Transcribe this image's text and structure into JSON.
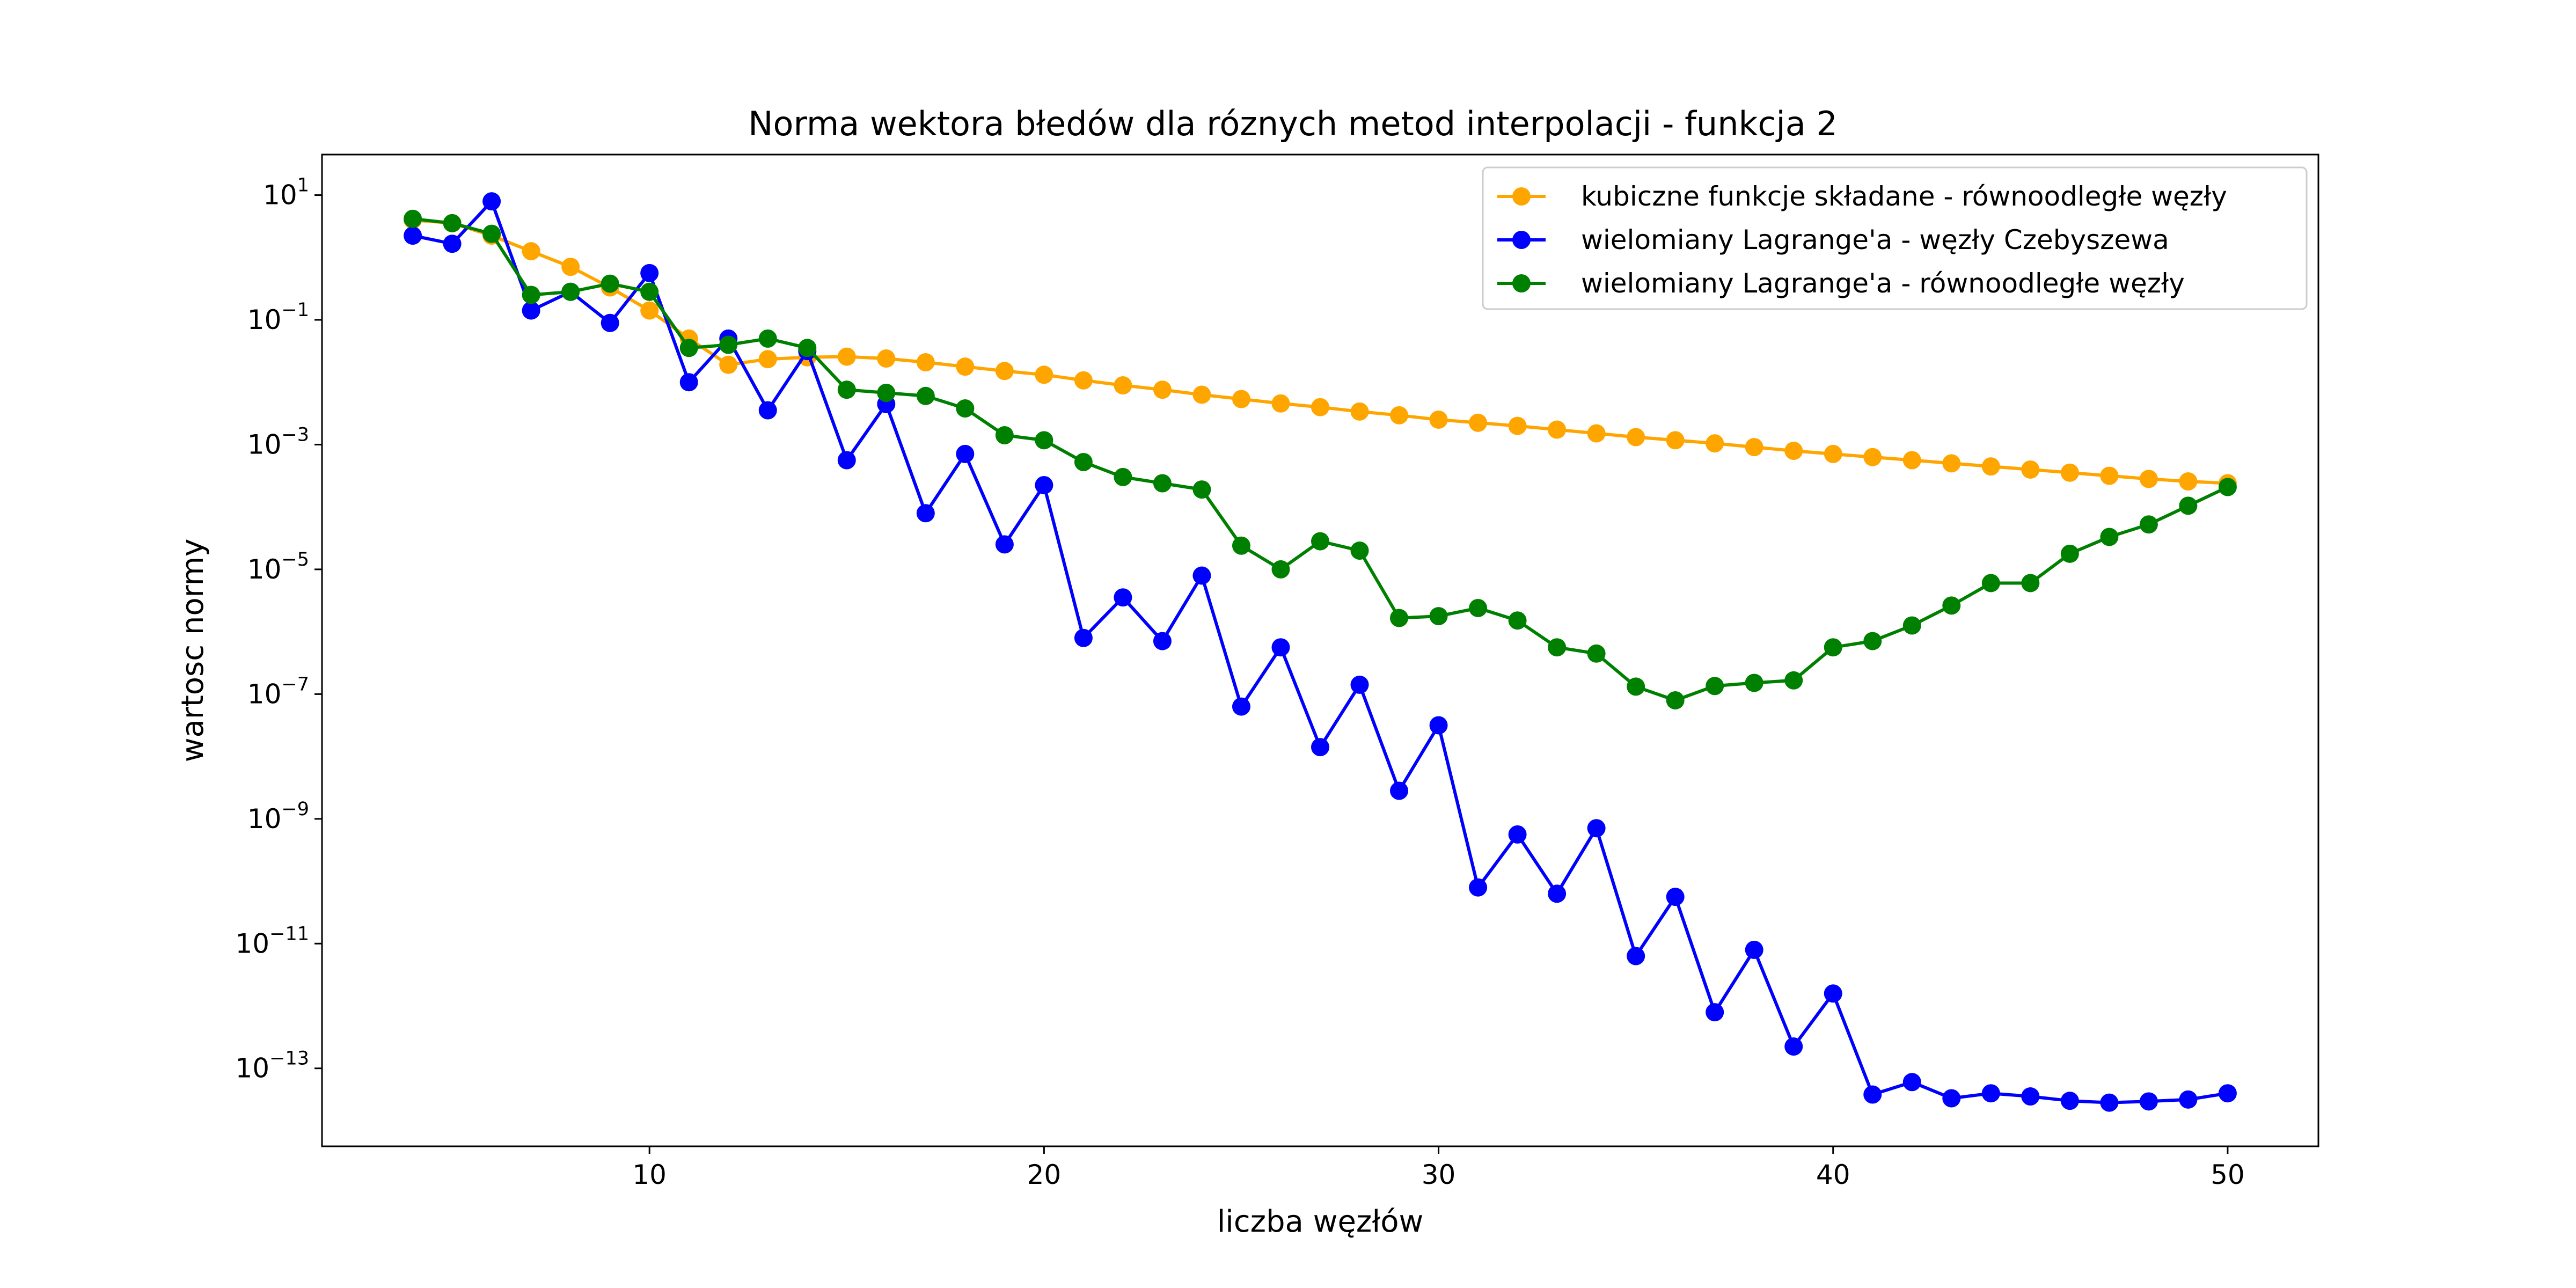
{
  "chart_data": {
    "type": "line",
    "title": "Norma wektora błedów dla róznych metod interpolacji - funkcja 2",
    "xlabel": "liczba węzłów",
    "ylabel": "wartosc normy",
    "xlim": [
      1.7,
      52.3
    ],
    "ylim_log10": [
      -14.25,
      1.65
    ],
    "y_scale": "log",
    "grid": false,
    "legend_position": "top-right",
    "x_ticks": [
      10,
      20,
      30,
      40,
      50
    ],
    "y_ticks": [
      {
        "base": "10",
        "exp": "1"
      },
      {
        "base": "10",
        "exp": "−1"
      },
      {
        "base": "10",
        "exp": "−3"
      },
      {
        "base": "10",
        "exp": "−5"
      },
      {
        "base": "10",
        "exp": "−7"
      },
      {
        "base": "10",
        "exp": "−9"
      },
      {
        "base": "10",
        "exp": "−11"
      },
      {
        "base": "10",
        "exp": "−13"
      }
    ],
    "y_tick_log10": [
      1,
      -1,
      -3,
      -5,
      -7,
      -9,
      -11,
      -13
    ],
    "x": [
      4,
      5,
      6,
      7,
      8,
      9,
      10,
      11,
      12,
      13,
      14,
      15,
      16,
      17,
      18,
      19,
      20,
      21,
      22,
      23,
      24,
      25,
      26,
      27,
      28,
      29,
      30,
      31,
      32,
      33,
      34,
      35,
      36,
      37,
      38,
      39,
      40,
      41,
      42,
      43,
      44,
      45,
      46,
      47,
      48,
      49,
      50
    ],
    "series": [
      {
        "name": "kubiczne funkcje składane - równoodległe węzły",
        "color": "#ffa500",
        "log10_values": [
          0.6,
          0.55,
          0.35,
          0.1,
          -0.15,
          -0.48,
          -0.85,
          -1.3,
          -1.72,
          -1.63,
          -1.6,
          -1.59,
          -1.62,
          -1.68,
          -1.75,
          -1.82,
          -1.88,
          -1.97,
          -2.05,
          -2.12,
          -2.2,
          -2.27,
          -2.34,
          -2.4,
          -2.47,
          -2.53,
          -2.6,
          -2.65,
          -2.7,
          -2.76,
          -2.82,
          -2.88,
          -2.93,
          -2.98,
          -3.04,
          -3.1,
          -3.15,
          -3.2,
          -3.25,
          -3.3,
          -3.35,
          -3.4,
          -3.45,
          -3.5,
          -3.55,
          -3.59,
          -3.62
        ]
      },
      {
        "name": "wielomiany Lagrange'a - węzły Czebyszewa",
        "color": "#0000ff",
        "log10_values": [
          0.35,
          0.22,
          0.9,
          -0.85,
          -0.55,
          -1.05,
          -0.25,
          -2.0,
          -1.3,
          -2.45,
          -1.5,
          -3.25,
          -2.35,
          -4.1,
          -3.15,
          -4.6,
          -3.65,
          -6.1,
          -5.45,
          -6.15,
          -5.1,
          -7.2,
          -6.25,
          -7.85,
          -6.85,
          -8.55,
          -7.5,
          -10.1,
          -9.25,
          -10.2,
          -9.15,
          -11.2,
          -10.25,
          -12.1,
          -11.1,
          -12.65,
          -11.8,
          -13.42,
          -13.22,
          -13.48,
          -13.4,
          -13.45,
          -13.52,
          -13.55,
          -13.53,
          -13.5,
          -13.4
        ]
      },
      {
        "name": "wielomiany Lagrange'a - równoodległe węzły",
        "color": "#008000",
        "log10_values": [
          0.62,
          0.55,
          0.38,
          -0.6,
          -0.55,
          -0.42,
          -0.55,
          -1.45,
          -1.4,
          -1.3,
          -1.45,
          -2.12,
          -2.17,
          -2.22,
          -2.42,
          -2.85,
          -2.93,
          -3.28,
          -3.52,
          -3.62,
          -3.72,
          -4.62,
          -5.0,
          -4.55,
          -4.7,
          -5.78,
          -5.75,
          -5.62,
          -5.82,
          -6.25,
          -6.35,
          -6.88,
          -7.1,
          -6.87,
          -6.82,
          -6.78,
          -6.25,
          -6.15,
          -5.9,
          -5.58,
          -5.22,
          -5.22,
          -4.75,
          -4.48,
          -4.28,
          -3.98,
          -3.68
        ]
      }
    ]
  }
}
